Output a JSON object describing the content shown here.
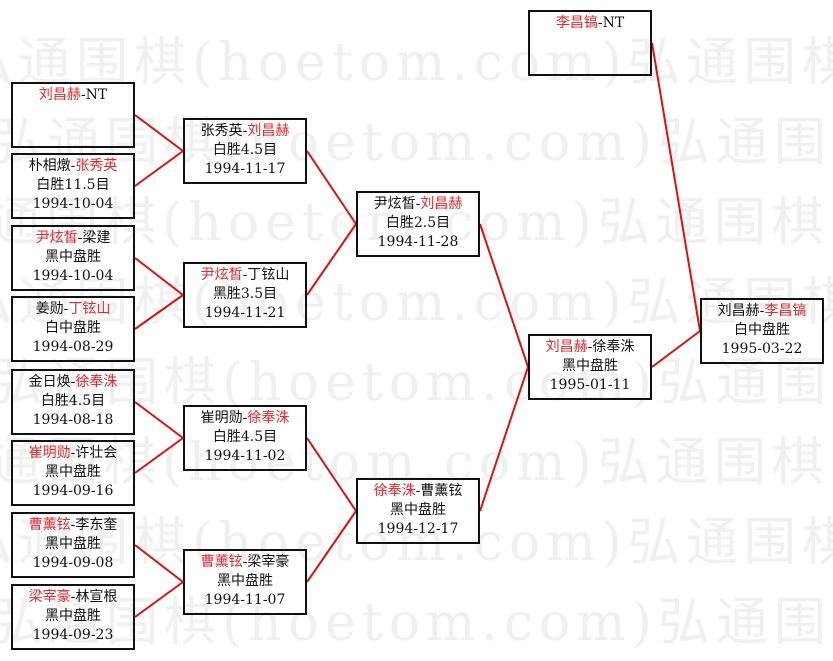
{
  "watermark": "弘通围棋(hoetom.com)",
  "colors": {
    "winner": "#e8282c",
    "line": "#e01010",
    "border": "#111111"
  },
  "boxes": [
    {
      "id": "r1-1",
      "col": 1,
      "row": 0,
      "players": [
        {
          "name": "刘昌赫",
          "win": true
        },
        {
          "name": "NT",
          "win": false
        }
      ],
      "result": "",
      "date": ""
    },
    {
      "id": "r1-2",
      "col": 1,
      "row": 1,
      "players": [
        {
          "name": "朴相燉",
          "win": false
        },
        {
          "name": "张秀英",
          "win": true
        }
      ],
      "result": "白胜11.5目",
      "date": "1994-10-04"
    },
    {
      "id": "r1-3",
      "col": 1,
      "row": 2,
      "players": [
        {
          "name": "尹炫皙",
          "win": true
        },
        {
          "name": "梁建",
          "win": false
        }
      ],
      "result": "黑中盘胜",
      "date": "1994-10-04"
    },
    {
      "id": "r1-4",
      "col": 1,
      "row": 3,
      "players": [
        {
          "name": "姜勋",
          "win": false
        },
        {
          "name": "丁铉山",
          "win": true
        }
      ],
      "result": "白中盘胜",
      "date": "1994-08-29"
    },
    {
      "id": "r1-5",
      "col": 1,
      "row": 4,
      "players": [
        {
          "name": "金日焕",
          "win": false
        },
        {
          "name": "徐奉洙",
          "win": true
        }
      ],
      "result": "白胜4.5目",
      "date": "1994-08-18"
    },
    {
      "id": "r1-6",
      "col": 1,
      "row": 5,
      "players": [
        {
          "name": "崔明勋",
          "win": true
        },
        {
          "name": "许壮会",
          "win": false
        }
      ],
      "result": "黑中盘胜",
      "date": "1994-09-16"
    },
    {
      "id": "r1-7",
      "col": 1,
      "row": 6,
      "players": [
        {
          "name": "曹薰铉",
          "win": true
        },
        {
          "name": "李东奎",
          "win": false
        }
      ],
      "result": "黑中盘胜",
      "date": "1994-09-08"
    },
    {
      "id": "r1-8",
      "col": 1,
      "row": 7,
      "players": [
        {
          "name": "梁宰豪",
          "win": true
        },
        {
          "name": "林宣根",
          "win": false
        }
      ],
      "result": "黑中盘胜",
      "date": "1994-09-23"
    },
    {
      "id": "r2-1",
      "col": 2,
      "row": 0,
      "players": [
        {
          "name": "张秀英",
          "win": false
        },
        {
          "name": "刘昌赫",
          "win": true
        }
      ],
      "result": "白胜4.5目",
      "date": "1994-11-17"
    },
    {
      "id": "r2-2",
      "col": 2,
      "row": 1,
      "players": [
        {
          "name": "尹炫皙",
          "win": true
        },
        {
          "name": "丁铉山",
          "win": false
        }
      ],
      "result": "黑胜3.5目",
      "date": "1994-11-21"
    },
    {
      "id": "r2-3",
      "col": 2,
      "row": 2,
      "players": [
        {
          "name": "崔明勋",
          "win": false
        },
        {
          "name": "徐奉洙",
          "win": true
        }
      ],
      "result": "白胜4.5目",
      "date": "1994-11-02"
    },
    {
      "id": "r2-4",
      "col": 2,
      "row": 3,
      "players": [
        {
          "name": "曹薰铉",
          "win": true
        },
        {
          "name": "梁宰豪",
          "win": false
        }
      ],
      "result": "黑中盘胜",
      "date": "1994-11-07"
    },
    {
      "id": "r3-1",
      "col": 3,
      "row": 0,
      "players": [
        {
          "name": "尹炫皙",
          "win": false
        },
        {
          "name": "刘昌赫",
          "win": true
        }
      ],
      "result": "白胜2.5目",
      "date": "1994-11-28"
    },
    {
      "id": "r3-2",
      "col": 3,
      "row": 1,
      "players": [
        {
          "name": "徐奉洙",
          "win": true
        },
        {
          "name": "曹薰铉",
          "win": false
        }
      ],
      "result": "黑中盘胜",
      "date": "1994-12-17"
    },
    {
      "id": "r4-1",
      "col": 4,
      "row": 0,
      "players": [
        {
          "name": "刘昌赫",
          "win": true
        },
        {
          "name": "徐奉洙",
          "win": false
        }
      ],
      "result": "黑中盘胜",
      "date": "1995-01-11"
    },
    {
      "id": "seed",
      "col": 4,
      "row": -1,
      "players": [
        {
          "name": "李昌镐",
          "win": true
        },
        {
          "name": "NT",
          "win": false
        }
      ],
      "result": "",
      "date": ""
    },
    {
      "id": "final",
      "col": 5,
      "row": 0,
      "players": [
        {
          "name": "刘昌赫",
          "win": false
        },
        {
          "name": "李昌镐",
          "win": true
        }
      ],
      "result": "白中盘胜",
      "date": "1995-03-22"
    }
  ]
}
